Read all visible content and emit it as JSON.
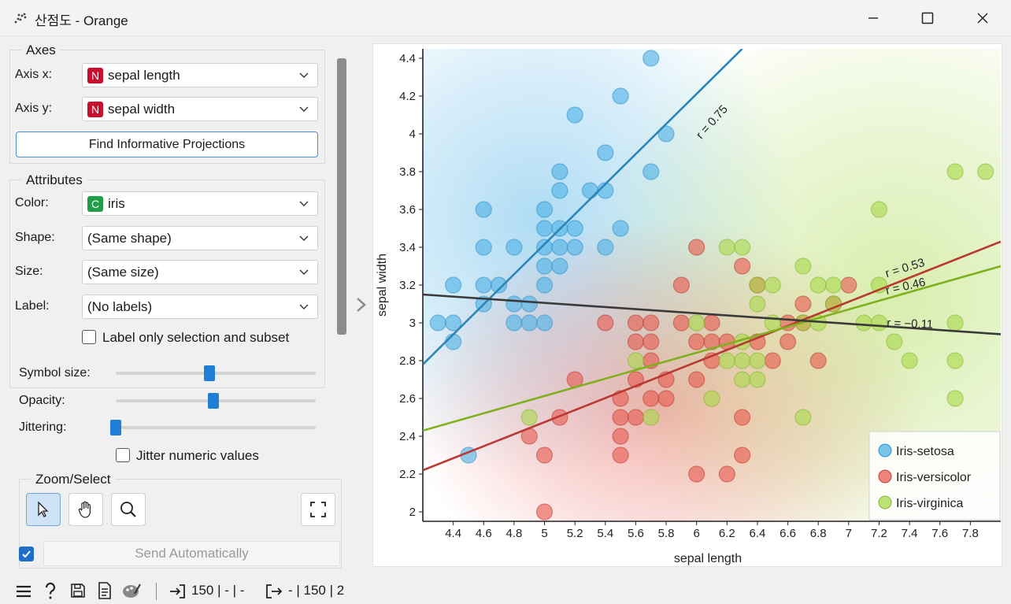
{
  "window": {
    "title": "산점도 - Orange"
  },
  "axes": {
    "group_title": "Axes",
    "x_label": "Axis x:",
    "x_value": "sepal length",
    "x_badge": "N",
    "y_label": "Axis y:",
    "y_value": "sepal width",
    "y_badge": "N",
    "find_button": "Find Informative Projections"
  },
  "attributes": {
    "group_title": "Attributes",
    "color_label": "Color:",
    "color_value": "iris",
    "color_badge": "C",
    "shape_label": "Shape:",
    "shape_value": "(Same shape)",
    "size_label": "Size:",
    "size_value": "(Same size)",
    "label_label": "Label:",
    "label_value": "(No labels)",
    "label_only_selection": "Label only selection and subset"
  },
  "sliders": {
    "symbol_size_label": "Symbol size:",
    "symbol_size": 0.47,
    "opacity_label": "Opacity:",
    "opacity": 0.49,
    "jittering_label": "Jittering:",
    "jittering": 0.0,
    "jitter_numeric": "Jitter numeric values"
  },
  "zoom": {
    "group_title": "Zoom/Select"
  },
  "send_automatically": "Send Automatically",
  "status": {
    "input": "150 | - | -",
    "output": "- | 150 | 2"
  },
  "colors": {
    "setosa": "#4db1e6",
    "versicolor": "#e8594f",
    "virginica": "#a8d84a",
    "accent": "#1f7fd6"
  },
  "chart_data": {
    "type": "scatter",
    "xlabel": "sepal length",
    "ylabel": "sepal width",
    "xlim": [
      4.2,
      8.0
    ],
    "ylim": [
      1.95,
      4.45
    ],
    "xticks": [
      "4.4",
      "4.6",
      "4.8",
      "5",
      "5.2",
      "5.4",
      "5.6",
      "5.8",
      "6",
      "6.2",
      "6.4",
      "6.6",
      "6.8",
      "7",
      "7.2",
      "7.4",
      "7.6",
      "7.8"
    ],
    "yticks": [
      "2",
      "2.2",
      "2.4",
      "2.6",
      "2.8",
      "3",
      "3.2",
      "3.4",
      "3.6",
      "3.8",
      "4",
      "4.2",
      "4.4"
    ],
    "legend_position": "bottom-right",
    "series": [
      {
        "name": "Iris-setosa",
        "color": "#4db1e6",
        "points": [
          [
            5.7,
            4.4
          ],
          [
            5.5,
            4.2
          ],
          [
            5.2,
            4.1
          ],
          [
            5.4,
            3.9
          ],
          [
            5.8,
            4.0
          ],
          [
            5.1,
            3.8
          ],
          [
            5.7,
            3.8
          ],
          [
            5.1,
            3.7
          ],
          [
            5.3,
            3.7
          ],
          [
            5.4,
            3.7
          ],
          [
            4.6,
            3.6
          ],
          [
            5.0,
            3.6
          ],
          [
            5.0,
            3.5
          ],
          [
            5.1,
            3.5
          ],
          [
            5.2,
            3.5
          ],
          [
            5.5,
            3.5
          ],
          [
            4.6,
            3.4
          ],
          [
            4.8,
            3.4
          ],
          [
            5.0,
            3.4
          ],
          [
            5.1,
            3.4
          ],
          [
            5.2,
            3.4
          ],
          [
            5.4,
            3.4
          ],
          [
            5.0,
            3.3
          ],
          [
            5.1,
            3.3
          ],
          [
            4.4,
            3.2
          ],
          [
            4.6,
            3.2
          ],
          [
            4.7,
            3.2
          ],
          [
            5.0,
            3.2
          ],
          [
            4.6,
            3.1
          ],
          [
            4.8,
            3.1
          ],
          [
            4.9,
            3.1
          ],
          [
            4.3,
            3.0
          ],
          [
            4.4,
            3.0
          ],
          [
            4.8,
            3.0
          ],
          [
            4.9,
            3.0
          ],
          [
            5.0,
            3.0
          ],
          [
            4.4,
            2.9
          ],
          [
            4.5,
            2.3
          ]
        ]
      },
      {
        "name": "Iris-versicolor",
        "color": "#e8594f",
        "points": [
          [
            6.0,
            3.4
          ],
          [
            6.3,
            3.3
          ],
          [
            5.9,
            3.2
          ],
          [
            6.4,
            3.2
          ],
          [
            7.0,
            3.2
          ],
          [
            6.7,
            3.1
          ],
          [
            6.9,
            3.1
          ],
          [
            5.4,
            3.0
          ],
          [
            5.6,
            3.0
          ],
          [
            5.7,
            3.0
          ],
          [
            5.9,
            3.0
          ],
          [
            6.1,
            3.0
          ],
          [
            6.6,
            3.0
          ],
          [
            6.7,
            3.0
          ],
          [
            5.6,
            2.9
          ],
          [
            5.7,
            2.9
          ],
          [
            6.0,
            2.9
          ],
          [
            6.1,
            2.9
          ],
          [
            6.2,
            2.9
          ],
          [
            6.4,
            2.9
          ],
          [
            6.6,
            2.9
          ],
          [
            5.7,
            2.8
          ],
          [
            6.1,
            2.8
          ],
          [
            6.5,
            2.8
          ],
          [
            6.8,
            2.8
          ],
          [
            5.6,
            2.7
          ],
          [
            5.8,
            2.7
          ],
          [
            6.0,
            2.7
          ],
          [
            5.2,
            2.7
          ],
          [
            5.5,
            2.6
          ],
          [
            5.7,
            2.6
          ],
          [
            5.8,
            2.6
          ],
          [
            5.1,
            2.5
          ],
          [
            5.5,
            2.5
          ],
          [
            5.6,
            2.5
          ],
          [
            6.3,
            2.5
          ],
          [
            4.9,
            2.4
          ],
          [
            5.5,
            2.4
          ],
          [
            5.0,
            2.3
          ],
          [
            5.5,
            2.3
          ],
          [
            6.3,
            2.3
          ],
          [
            6.0,
            2.2
          ],
          [
            6.2,
            2.2
          ],
          [
            5.0,
            2.0
          ]
        ]
      },
      {
        "name": "Iris-virginica",
        "color": "#a8d84a",
        "points": [
          [
            7.7,
            3.8
          ],
          [
            7.9,
            3.8
          ],
          [
            7.2,
            3.6
          ],
          [
            6.2,
            3.4
          ],
          [
            6.3,
            3.4
          ],
          [
            6.7,
            3.3
          ],
          [
            6.4,
            3.2
          ],
          [
            6.5,
            3.2
          ],
          [
            6.8,
            3.2
          ],
          [
            6.9,
            3.2
          ],
          [
            7.2,
            3.2
          ],
          [
            6.4,
            3.1
          ],
          [
            6.9,
            3.1
          ],
          [
            6.0,
            3.0
          ],
          [
            6.5,
            3.0
          ],
          [
            6.7,
            3.0
          ],
          [
            6.8,
            3.0
          ],
          [
            7.1,
            3.0
          ],
          [
            7.2,
            3.0
          ],
          [
            7.7,
            3.0
          ],
          [
            6.3,
            2.9
          ],
          [
            7.3,
            2.9
          ],
          [
            5.6,
            2.8
          ],
          [
            6.2,
            2.8
          ],
          [
            6.3,
            2.8
          ],
          [
            6.4,
            2.8
          ],
          [
            7.4,
            2.8
          ],
          [
            7.7,
            2.8
          ],
          [
            6.3,
            2.7
          ],
          [
            6.4,
            2.7
          ],
          [
            6.1,
            2.6
          ],
          [
            7.7,
            2.6
          ],
          [
            4.9,
            2.5
          ],
          [
            5.7,
            2.5
          ],
          [
            6.7,
            2.5
          ]
        ]
      }
    ],
    "regression_lines": [
      {
        "label": "r = 0.75",
        "color": "#2a85b8",
        "from": [
          4.2,
          2.78
        ],
        "to": [
          6.3,
          4.45
        ]
      },
      {
        "label": "r = 0.53",
        "color": "#b83a32",
        "from": [
          4.2,
          2.22
        ],
        "to": [
          8.0,
          3.43
        ]
      },
      {
        "label": "r = 0.46",
        "color": "#7fb11f",
        "from": [
          4.2,
          2.43
        ],
        "to": [
          8.0,
          3.3
        ]
      },
      {
        "label": "r = −0.11",
        "color": "#3a3a3a",
        "from": [
          4.2,
          3.15
        ],
        "to": [
          8.0,
          2.94
        ]
      }
    ]
  }
}
